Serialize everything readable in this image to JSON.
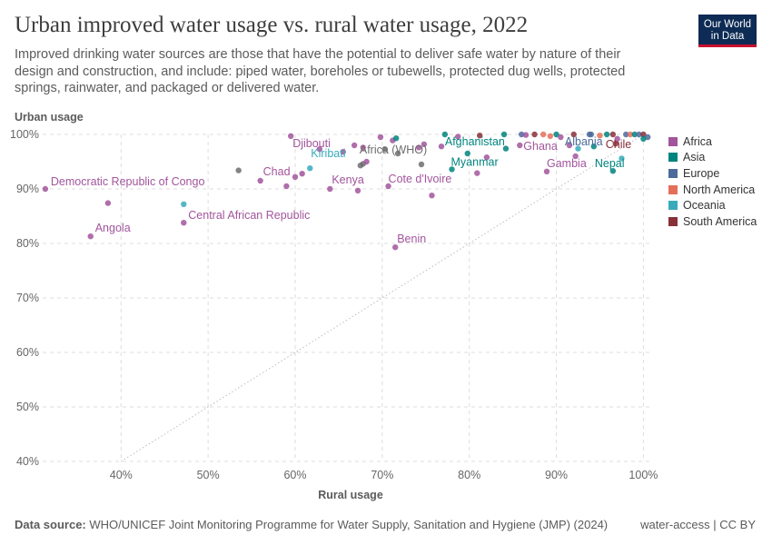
{
  "header": {
    "title": "Urban improved water usage vs. rural water usage, 2022",
    "subtitle": "Improved drinking water sources are those that have the potential to deliver safe water by nature of their design and construction, and include: piped water, boreholes or tubewells, protected dug wells, protected springs, rainwater, and packaged or delivered water.",
    "logo_line1": "Our World",
    "logo_line2": "in Data"
  },
  "footer": {
    "source_label": "Data source:",
    "source_text": "WHO/UNICEF Joint Monitoring Programme for Water Supply, Sanitation and Hygiene (JMP) (2024)",
    "right_text": "water-access | CC BY"
  },
  "colors": {
    "Africa": "#a2559c",
    "Asia": "#00847e",
    "Europe": "#4c6a9c",
    "North America": "#e56e5a",
    "Oceania": "#38aaba",
    "South America": "#883039",
    "Africa (WHO)": "#6d6d6d"
  },
  "chart_data": {
    "type": "scatter",
    "title": "Urban improved water usage vs. rural water usage, 2022",
    "xlabel": "Rural usage",
    "ylabel": "Urban usage",
    "xlim": [
      31,
      101
    ],
    "ylim": [
      40,
      100
    ],
    "x_ticks": [
      "40%",
      "50%",
      "60%",
      "70%",
      "80%",
      "90%",
      "100%"
    ],
    "x_tick_values": [
      40,
      50,
      60,
      70,
      80,
      90,
      100
    ],
    "y_ticks": [
      "40%",
      "50%",
      "60%",
      "70%",
      "80%",
      "90%",
      "100%"
    ],
    "y_tick_values": [
      40,
      50,
      60,
      70,
      80,
      90,
      100
    ],
    "grid": true,
    "reference_line": "y = x",
    "legend": [
      "Africa",
      "Asia",
      "Europe",
      "North America",
      "Oceania",
      "South America"
    ],
    "legend_position": "right",
    "labeled_points": [
      {
        "label": "Democratic Republic of Congo",
        "group": "Africa",
        "x": 31.3,
        "y": 90.0
      },
      {
        "label": "Angola",
        "group": "Africa",
        "x": 36.5,
        "y": 81.3
      },
      {
        "label": "Central African Republic",
        "group": "Africa",
        "x": 47.2,
        "y": 83.8
      },
      {
        "label": "Chad",
        "group": "Africa",
        "x": 56.0,
        "y": 91.5
      },
      {
        "label": "Djibouti",
        "group": "Africa",
        "x": 59.5,
        "y": 99.7
      },
      {
        "label": "Kiribati",
        "group": "Oceania",
        "x": 61.7,
        "y": 93.8
      },
      {
        "label": "Kenya",
        "group": "Africa",
        "x": 64.0,
        "y": 90.0
      },
      {
        "label": "Africa (WHO)",
        "group": "Africa (WHO)",
        "x": 67.5,
        "y": 94.3
      },
      {
        "label": "Cote d'Ivoire",
        "group": "Africa",
        "x": 70.7,
        "y": 90.5
      },
      {
        "label": "Benin",
        "group": "Africa",
        "x": 71.5,
        "y": 79.3
      },
      {
        "label": "Afghanistan",
        "group": "Asia",
        "x": 77.2,
        "y": 100.0
      },
      {
        "label": "Myanmar",
        "group": "Asia",
        "x": 78.0,
        "y": 93.6
      },
      {
        "label": "Ghana",
        "group": "Africa",
        "x": 85.8,
        "y": 98.0
      },
      {
        "label": "Gambia",
        "group": "Africa",
        "x": 88.9,
        "y": 93.2
      },
      {
        "label": "Albania",
        "group": "Europe",
        "x": 94.0,
        "y": 100.0
      },
      {
        "label": "Chile",
        "group": "South America",
        "x": 96.8,
        "y": 98.3
      },
      {
        "label": "Nepal",
        "group": "Asia",
        "x": 96.5,
        "y": 93.3
      }
    ],
    "points": [
      {
        "group": "Africa",
        "x": 38.5,
        "y": 87.4
      },
      {
        "group": "Oceania",
        "x": 47.2,
        "y": 87.2
      },
      {
        "group": "Africa (WHO)",
        "x": 53.5,
        "y": 93.4
      },
      {
        "group": "Africa",
        "x": 59.0,
        "y": 90.5
      },
      {
        "group": "Africa",
        "x": 60.0,
        "y": 92.2
      },
      {
        "group": "Africa",
        "x": 60.8,
        "y": 92.8
      },
      {
        "group": "Africa",
        "x": 62.8,
        "y": 97.3
      },
      {
        "group": "Africa",
        "x": 65.5,
        "y": 96.8
      },
      {
        "group": "Africa",
        "x": 66.8,
        "y": 98.0
      },
      {
        "group": "Africa",
        "x": 67.2,
        "y": 89.7
      },
      {
        "group": "Africa",
        "x": 67.8,
        "y": 97.6
      },
      {
        "group": "Africa (WHO)",
        "x": 67.8,
        "y": 94.6
      },
      {
        "group": "Africa",
        "x": 68.2,
        "y": 95.0
      },
      {
        "group": "Africa",
        "x": 69.8,
        "y": 99.5
      },
      {
        "group": "Africa (WHO)",
        "x": 70.3,
        "y": 97.3
      },
      {
        "group": "Africa",
        "x": 71.2,
        "y": 98.9
      },
      {
        "group": "Asia",
        "x": 71.6,
        "y": 99.3
      },
      {
        "group": "Africa (WHO)",
        "x": 71.8,
        "y": 96.5
      },
      {
        "group": "Africa",
        "x": 74.2,
        "y": 97.6
      },
      {
        "group": "Africa",
        "x": 74.8,
        "y": 98.2
      },
      {
        "group": "Africa (WHO)",
        "x": 74.5,
        "y": 94.5
      },
      {
        "group": "Africa",
        "x": 75.7,
        "y": 88.8
      },
      {
        "group": "Africa",
        "x": 76.8,
        "y": 97.8
      },
      {
        "group": "Africa",
        "x": 78.7,
        "y": 99.6
      },
      {
        "group": "Asia",
        "x": 79.8,
        "y": 96.5
      },
      {
        "group": "Africa",
        "x": 80.9,
        "y": 92.9
      },
      {
        "group": "South America",
        "x": 81.2,
        "y": 99.8
      },
      {
        "group": "Africa",
        "x": 82.0,
        "y": 95.8
      },
      {
        "group": "Asia",
        "x": 84.0,
        "y": 100.0
      },
      {
        "group": "Asia",
        "x": 84.2,
        "y": 97.4
      },
      {
        "group": "Europe",
        "x": 86.0,
        "y": 100.0
      },
      {
        "group": "Africa",
        "x": 86.5,
        "y": 99.9
      },
      {
        "group": "South America",
        "x": 87.5,
        "y": 100.0
      },
      {
        "group": "North America",
        "x": 88.5,
        "y": 100.0
      },
      {
        "group": "North America",
        "x": 89.3,
        "y": 99.7
      },
      {
        "group": "Asia",
        "x": 90.0,
        "y": 100.0
      },
      {
        "group": "Africa",
        "x": 90.5,
        "y": 99.5
      },
      {
        "group": "Africa",
        "x": 91.5,
        "y": 98.0
      },
      {
        "group": "South America",
        "x": 92.0,
        "y": 100.0
      },
      {
        "group": "Africa",
        "x": 92.2,
        "y": 96.0
      },
      {
        "group": "Oceania",
        "x": 92.5,
        "y": 97.4
      },
      {
        "group": "Europe",
        "x": 93.8,
        "y": 100.0
      },
      {
        "group": "Asia",
        "x": 94.3,
        "y": 97.8
      },
      {
        "group": "North America",
        "x": 95.0,
        "y": 99.8
      },
      {
        "group": "Asia",
        "x": 95.8,
        "y": 100.0
      },
      {
        "group": "South America",
        "x": 96.5,
        "y": 100.0
      },
      {
        "group": "Africa",
        "x": 97.0,
        "y": 99.2
      },
      {
        "group": "Oceania",
        "x": 97.5,
        "y": 95.6
      },
      {
        "group": "Europe",
        "x": 98.0,
        "y": 100.0
      },
      {
        "group": "North America",
        "x": 98.5,
        "y": 100.0
      },
      {
        "group": "Asia",
        "x": 99.0,
        "y": 100.0
      },
      {
        "group": "Europe",
        "x": 99.5,
        "y": 100.0
      },
      {
        "group": "South America",
        "x": 100.0,
        "y": 100.0
      },
      {
        "group": "Europe",
        "x": 100.5,
        "y": 99.5
      },
      {
        "group": "Asia",
        "x": 100.0,
        "y": 99.2
      }
    ]
  }
}
